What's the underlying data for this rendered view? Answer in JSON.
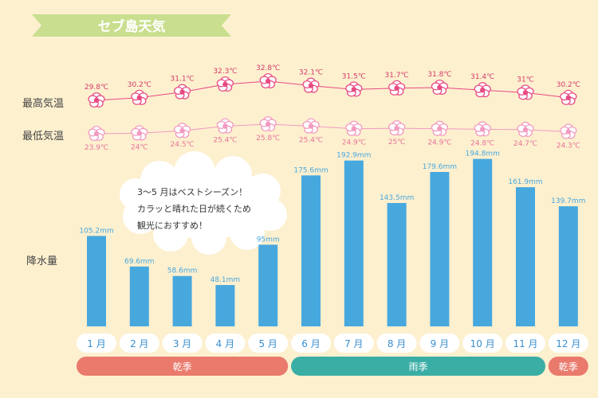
{
  "title": "セブ島天気",
  "row_labels": {
    "high": "最高気温",
    "low": "最低気温",
    "rain": "降水量"
  },
  "callout": {
    "lines": [
      "3〜5 月はベストシーズン！",
      "カラッと晴れた日が続くため",
      "観光におすすめ！"
    ]
  },
  "seasons": [
    {
      "label": "乾季",
      "from": 0,
      "to": 4,
      "color": "#e97a6c"
    },
    {
      "label": "雨季",
      "from": 5,
      "to": 10,
      "color": "#3aaea5"
    },
    {
      "label": "乾季",
      "from": 11,
      "to": 11,
      "color": "#e97a6c"
    }
  ],
  "colors": {
    "background": "#fdf0cf",
    "title_banner": "#c9df8f",
    "bar": "#47a8de",
    "rain_label": "#47a8de",
    "high_label": "#d23a6a",
    "low_label": "#e8739a",
    "flower_high": "#e84a84",
    "flower_low": "#f29ac0",
    "month_text": "#3a8fcf"
  },
  "chart_data": {
    "type": "bar+line",
    "title": "セブ島天気",
    "categories": [
      "1 月",
      "2 月",
      "3 月",
      "4 月",
      "5 月",
      "6 月",
      "7 月",
      "8 月",
      "9 月",
      "10 月",
      "11 月",
      "12 月"
    ],
    "high_temp": {
      "name": "最高気温",
      "values": [
        29.8,
        30.2,
        31.1,
        32.3,
        32.8,
        32.1,
        31.5,
        31.7,
        31.8,
        31.4,
        31,
        30.2
      ],
      "labels": [
        "29.8℃",
        "30.2℃",
        "31.1℃",
        "32.3℃",
        "32.8℃",
        "32.1℃",
        "31.5℃",
        "31.7℃",
        "31.8℃",
        "31.4℃",
        "31℃",
        "30.2℃"
      ]
    },
    "low_temp": {
      "name": "最低気温",
      "values": [
        23.9,
        24,
        24.5,
        25.4,
        25.8,
        25.4,
        24.9,
        25,
        24.9,
        24.8,
        24.7,
        24.3
      ],
      "labels": [
        "23.9℃",
        "24℃",
        "24.5℃",
        "25.4℃",
        "25.8℃",
        "25.4℃",
        "24.9℃",
        "25℃",
        "24.9℃",
        "24.8℃",
        "24.7℃",
        "24.3℃"
      ]
    },
    "rainfall": {
      "name": "降水量",
      "unit": "mm",
      "values": [
        105.2,
        69.6,
        58.6,
        48.1,
        95,
        175.6,
        192.9,
        143.5,
        179.6,
        194.8,
        161.9,
        139.7
      ],
      "labels": [
        "105.2mm",
        "69.6mm",
        "58.6mm",
        "48.1mm",
        "95mm",
        "175.6mm",
        "192.9mm",
        "143.5mm",
        "179.6mm",
        "194.8mm",
        "161.9mm",
        "139.7mm"
      ]
    }
  }
}
